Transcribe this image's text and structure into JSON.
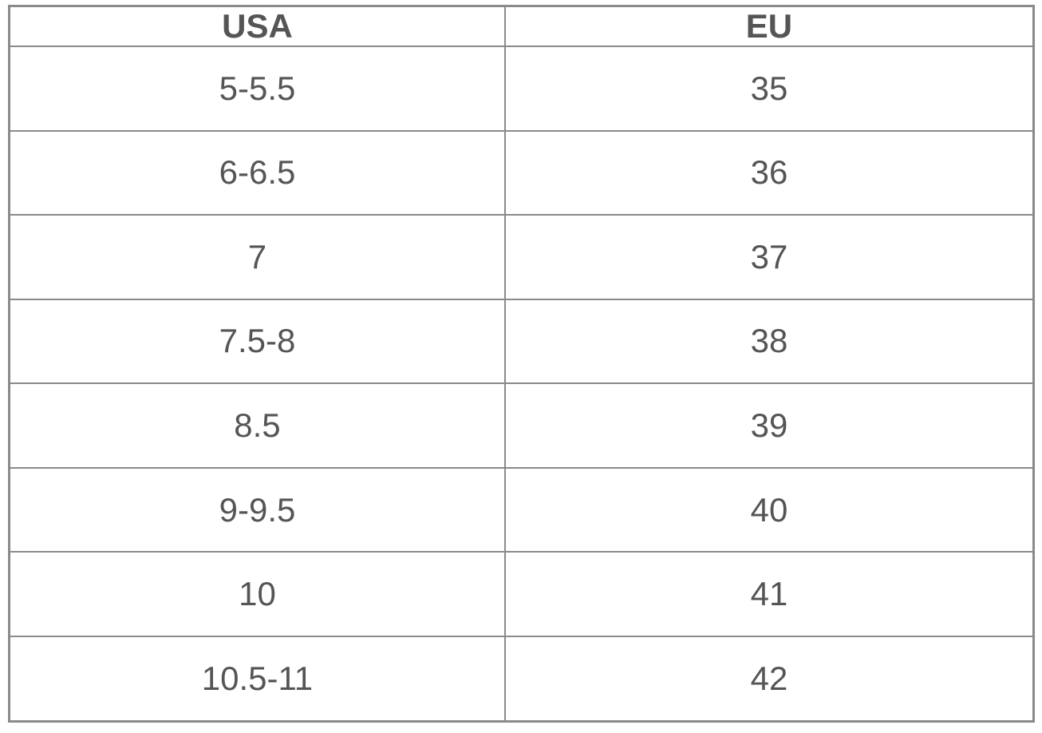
{
  "page": {
    "background_color": "#ffffff"
  },
  "table": {
    "description": "Shoe size conversion table USA to EU",
    "border_color": "#8a8a8a",
    "text_color": "#555555",
    "headers": [
      "USA",
      "EU"
    ],
    "rows": [
      [
        "5-5.5",
        "35"
      ],
      [
        "6-6.5",
        "36"
      ],
      [
        "7",
        "37"
      ],
      [
        "7.5-8",
        "38"
      ],
      [
        "8.5",
        "39"
      ],
      [
        "9-9.5",
        "40"
      ],
      [
        "10",
        "41"
      ],
      [
        "10.5-11",
        "42"
      ]
    ]
  }
}
